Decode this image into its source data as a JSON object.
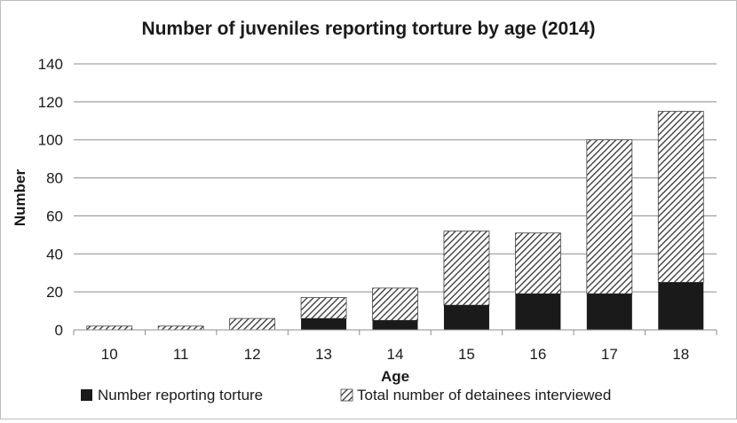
{
  "chart_data": {
    "type": "bar",
    "stacked": true,
    "title": "Number of juveniles reporting torture by age (2014)",
    "xlabel": "Age",
    "ylabel": "Number",
    "categories": [
      "10",
      "11",
      "12",
      "13",
      "14",
      "15",
      "16",
      "17",
      "18"
    ],
    "ylim": [
      0,
      140
    ],
    "yticks": [
      0,
      20,
      40,
      60,
      80,
      100,
      120,
      140
    ],
    "grid": true,
    "legend_position": "bottom",
    "series": [
      {
        "name": "Number reporting torture",
        "values": [
          0,
          0,
          0,
          6,
          5,
          13,
          19,
          19,
          25
        ],
        "color": "#1a1a1a",
        "fill": "solid"
      },
      {
        "name": "Total number of detainees interviewed",
        "values": [
          2,
          2,
          6,
          17,
          22,
          52,
          51,
          100,
          115
        ],
        "color": "#3a3a3a",
        "fill": "hatched"
      }
    ]
  }
}
